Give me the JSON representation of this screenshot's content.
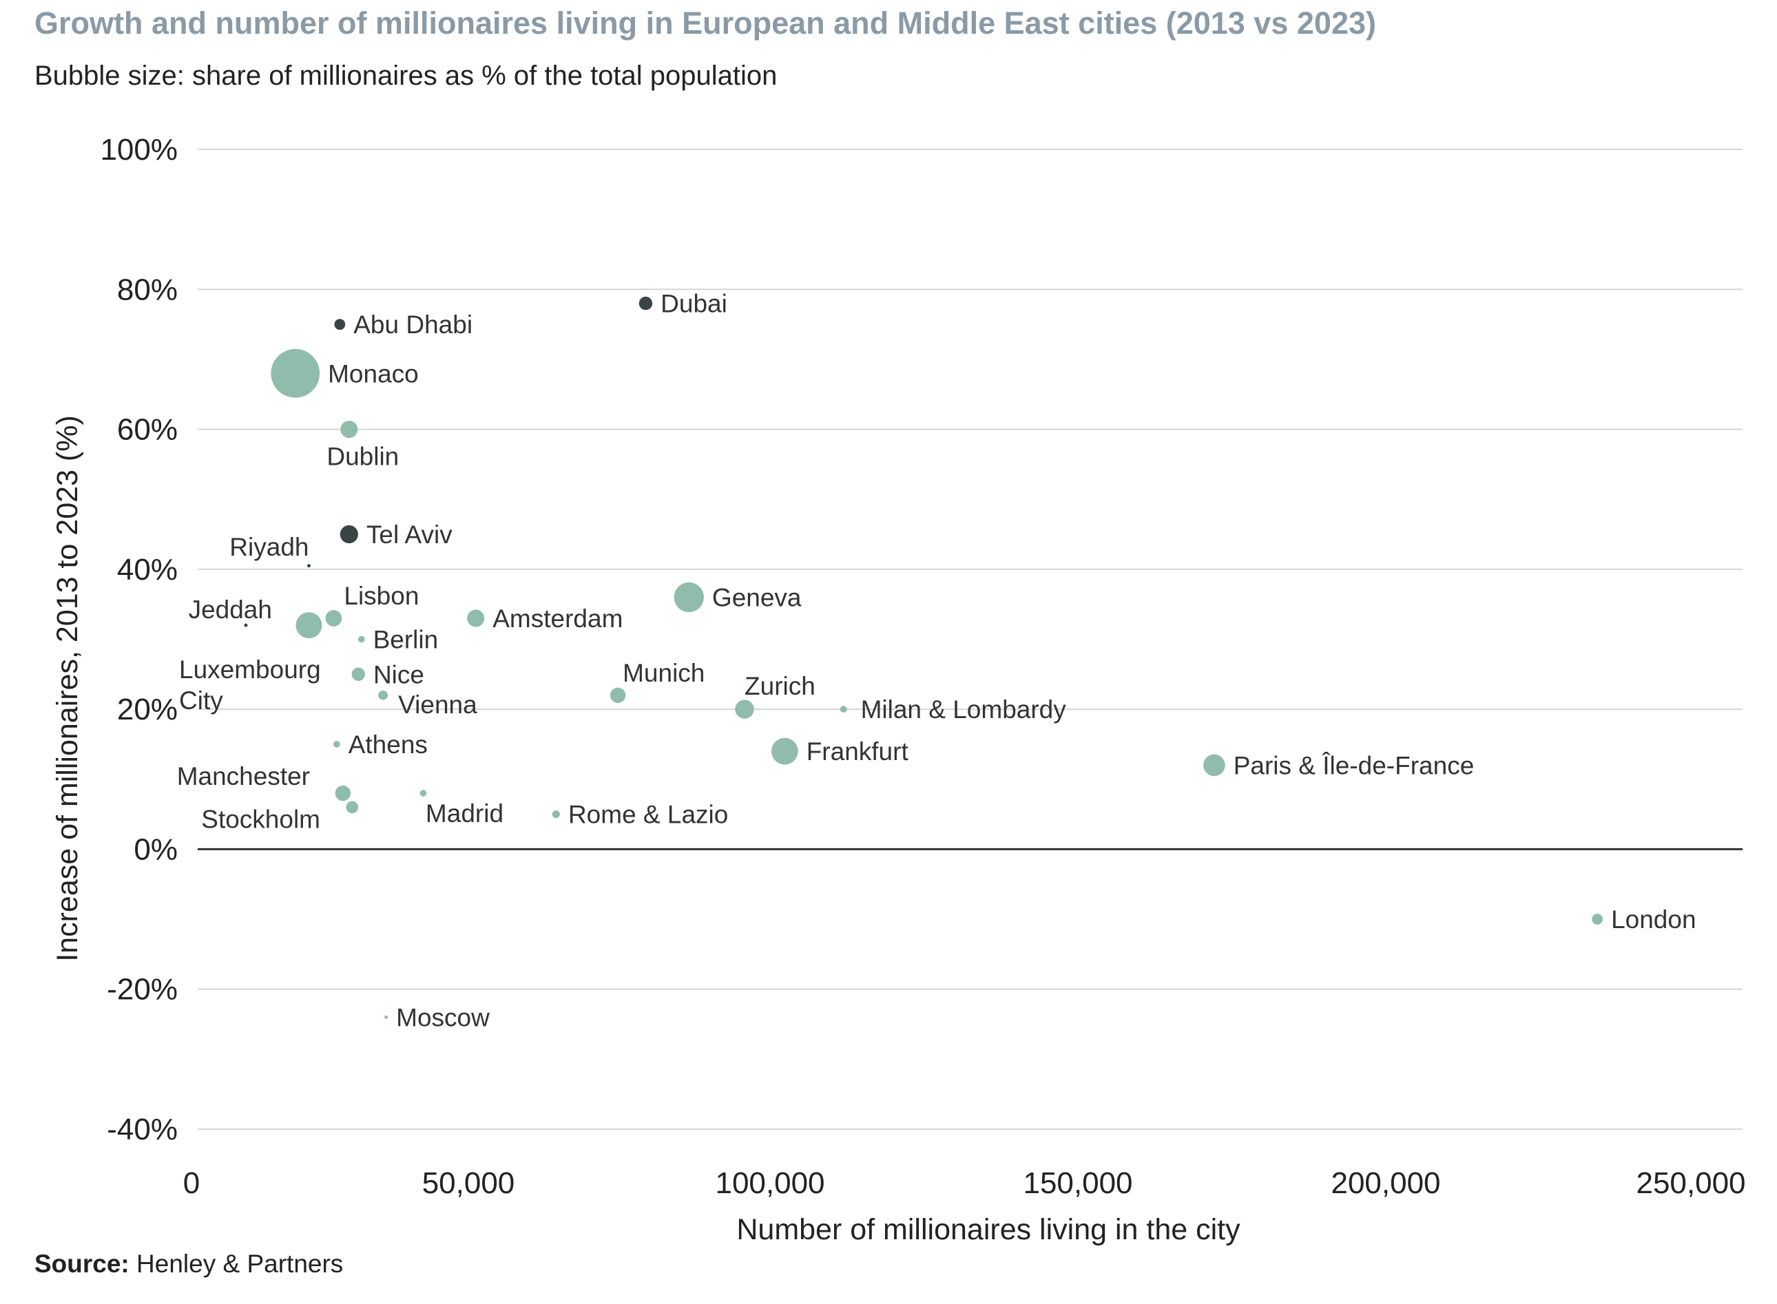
{
  "chart_data": {
    "type": "scatter",
    "title": "Growth and number of millionaires living in European and Middle East cities (2013 vs 2023)",
    "subtitle": "Bubble size: share of millionaires as % of the total population",
    "xlabel": "Number of millionaires living in the city",
    "ylabel": "Increase of millionaires, 2013 to 2023 (%)",
    "xlim": [
      0,
      250000
    ],
    "ylim": [
      -40,
      100
    ],
    "x_ticks": [
      0,
      50000,
      100000,
      150000,
      200000,
      250000
    ],
    "x_tick_labels": [
      "0",
      "50,000",
      "100,000",
      "150,000",
      "200,000",
      "250,000"
    ],
    "y_ticks": [
      100,
      80,
      60,
      40,
      20,
      0,
      -20,
      -40
    ],
    "y_tick_labels": [
      "100%",
      "80%",
      "60%",
      "40%",
      "20%",
      "0%",
      "-20%",
      "-40%"
    ],
    "colors": {
      "europe": "#8fbcab",
      "middle_east": "#3a4346",
      "grid": "#d6d6d6",
      "zero_line": "#333333"
    },
    "points": [
      {
        "name": "Abu Dhabi",
        "label": "Abu Dhabi",
        "x": 23000,
        "y": 75,
        "size": 0.4,
        "group": "middle_east",
        "label_pos": "right"
      },
      {
        "name": "Dubai",
        "label": "Dubai",
        "x": 72500,
        "y": 78,
        "size": 0.6,
        "group": "middle_east",
        "label_pos": "right"
      },
      {
        "name": "Monaco",
        "label": "Monaco",
        "x": 15800,
        "y": 68,
        "size": 8,
        "group": "europe",
        "label_pos": "right"
      },
      {
        "name": "Dublin",
        "label": "Dublin",
        "x": 24500,
        "y": 60,
        "size": 1,
        "group": "europe",
        "label_pos": "below"
      },
      {
        "name": "Tel Aviv",
        "label": "Tel Aviv",
        "x": 24500,
        "y": 45,
        "size": 1.1,
        "group": "middle_east",
        "label_pos": "right"
      },
      {
        "name": "Riyadh",
        "label": "Riyadh",
        "x": 18000,
        "y": 40.5,
        "size": 0.04,
        "group": "middle_east",
        "label_pos": "left"
      },
      {
        "name": "Jeddah",
        "label": "Jeddah",
        "x": 7800,
        "y": 32,
        "size": 0.04,
        "group": "middle_east",
        "label_pos": "left"
      },
      {
        "name": "Luxembourg City",
        "label": "Luxembourg City",
        "x": 18000,
        "y": 32,
        "size": 2.3,
        "group": "europe",
        "label_pos": "below-left"
      },
      {
        "name": "Lisbon",
        "label": "Lisbon",
        "x": 22000,
        "y": 33,
        "size": 0.9,
        "group": "europe",
        "label_pos": "above-right"
      },
      {
        "name": "Berlin",
        "label": "Berlin",
        "x": 26500,
        "y": 30,
        "size": 0.15,
        "group": "europe",
        "label_pos": "right"
      },
      {
        "name": "Nice",
        "label": "Nice",
        "x": 26000,
        "y": 25,
        "size": 0.6,
        "group": "europe",
        "label_pos": "right"
      },
      {
        "name": "Vienna",
        "label": "Vienna",
        "x": 30000,
        "y": 22,
        "size": 0.3,
        "group": "europe",
        "label_pos": "right"
      },
      {
        "name": "Amsterdam",
        "label": "Amsterdam",
        "x": 45000,
        "y": 33,
        "size": 1,
        "group": "europe",
        "label_pos": "right"
      },
      {
        "name": "Geneva",
        "label": "Geneva",
        "x": 79500,
        "y": 36,
        "size": 3,
        "group": "europe",
        "label_pos": "right"
      },
      {
        "name": "Munich",
        "label": "Munich",
        "x": 68000,
        "y": 22,
        "size": 0.8,
        "group": "europe",
        "label_pos": "above-right"
      },
      {
        "name": "Zurich",
        "label": "Zurich",
        "x": 88500,
        "y": 20,
        "size": 1.2,
        "group": "europe",
        "label_pos": "above-right"
      },
      {
        "name": "Milan & Lombardy",
        "label": "Milan & Lombardy",
        "x": 104500,
        "y": 20,
        "size": 0.15,
        "group": "europe",
        "label_pos": "right"
      },
      {
        "name": "Frankfurt",
        "label": "Frankfurt",
        "x": 95000,
        "y": 14,
        "size": 2.4,
        "group": "europe",
        "label_pos": "right"
      },
      {
        "name": "Paris & Île-de-France",
        "label": "Paris & Île-de-France",
        "x": 164500,
        "y": 12,
        "size": 1.6,
        "group": "europe",
        "label_pos": "right"
      },
      {
        "name": "Athens",
        "label": "Athens",
        "x": 22500,
        "y": 15,
        "size": 0.15,
        "group": "europe",
        "label_pos": "right"
      },
      {
        "name": "Manchester",
        "label": "Manchester",
        "x": 23500,
        "y": 8,
        "size": 0.8,
        "group": "europe",
        "label_pos": "above-left"
      },
      {
        "name": "Stockholm",
        "label": "Stockholm",
        "x": 25000,
        "y": 6,
        "size": 0.5,
        "group": "europe",
        "label_pos": "below-left"
      },
      {
        "name": "Madrid",
        "label": "Madrid",
        "x": 36500,
        "y": 8,
        "size": 0.15,
        "group": "europe",
        "label_pos": "below"
      },
      {
        "name": "Rome & Lazio",
        "label": "Rome & Lazio",
        "x": 58000,
        "y": 5,
        "size": 0.2,
        "group": "europe",
        "label_pos": "right"
      },
      {
        "name": "London",
        "label": "London",
        "x": 226500,
        "y": -10,
        "size": 0.4,
        "group": "europe",
        "label_pos": "right"
      },
      {
        "name": "Moscow",
        "label": "Moscow",
        "x": 30500,
        "y": -24,
        "size": 0.02,
        "group": "europe",
        "label_pos": "right"
      }
    ]
  },
  "source": {
    "label": "Source:",
    "text": "Henley & Partners"
  }
}
